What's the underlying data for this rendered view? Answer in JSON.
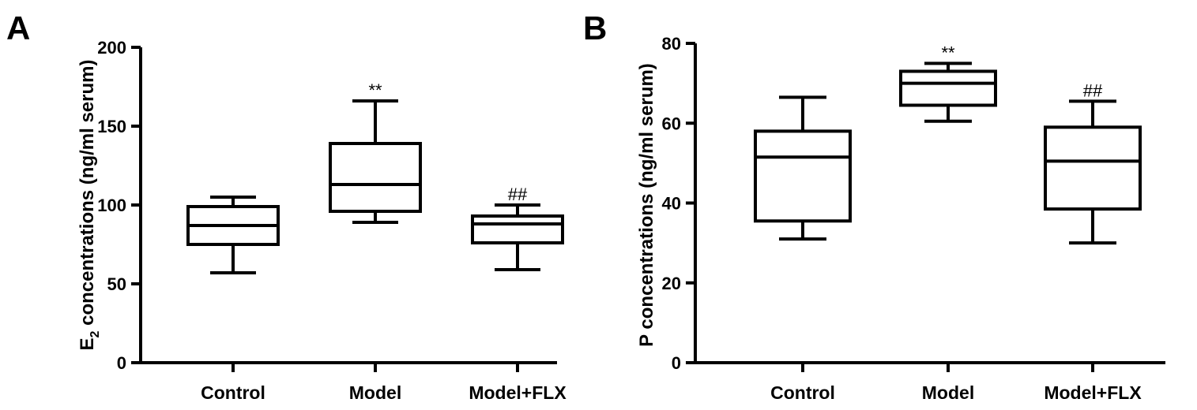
{
  "chart_data": [
    {
      "type": "box",
      "panel": "A",
      "ylabel_main": "E",
      "ylabel_sub": "2",
      "ylabel_rest": " concentrations (ng/ml serum)",
      "ylim": [
        0,
        200
      ],
      "yticks": [
        "0",
        "50",
        "100",
        "150",
        "200"
      ],
      "ytick_values": [
        0,
        50,
        100,
        150,
        200
      ],
      "categories": [
        "Control",
        "Model",
        "Model+FLX"
      ],
      "boxes": [
        {
          "min": 57,
          "q1": 75,
          "median": 87,
          "q3": 99,
          "max": 105,
          "annotation": ""
        },
        {
          "min": 89,
          "q1": 96,
          "median": 113,
          "q3": 139,
          "max": 166,
          "annotation": "**"
        },
        {
          "min": 59,
          "q1": 76,
          "median": 88,
          "q3": 93,
          "max": 100,
          "annotation": "##"
        }
      ]
    },
    {
      "type": "box",
      "panel": "B",
      "ylabel_main": "P",
      "ylabel_sub": "",
      "ylabel_rest": " concentrations (ng/ml serum)",
      "ylim": [
        0,
        80
      ],
      "yticks": [
        "0",
        "20",
        "40",
        "60",
        "80"
      ],
      "ytick_values": [
        0,
        20,
        40,
        60,
        80
      ],
      "categories": [
        "Control",
        "Model",
        "Model+FLX"
      ],
      "boxes": [
        {
          "min": 31,
          "q1": 35.5,
          "median": 51.5,
          "q3": 58,
          "max": 66.5,
          "annotation": ""
        },
        {
          "min": 60.5,
          "q1": 64.5,
          "median": 70,
          "q3": 73,
          "max": 75,
          "annotation": "**"
        },
        {
          "min": 30,
          "q1": 38.5,
          "median": 50.5,
          "q3": 59,
          "max": 65.5,
          "annotation": "##"
        }
      ]
    }
  ]
}
